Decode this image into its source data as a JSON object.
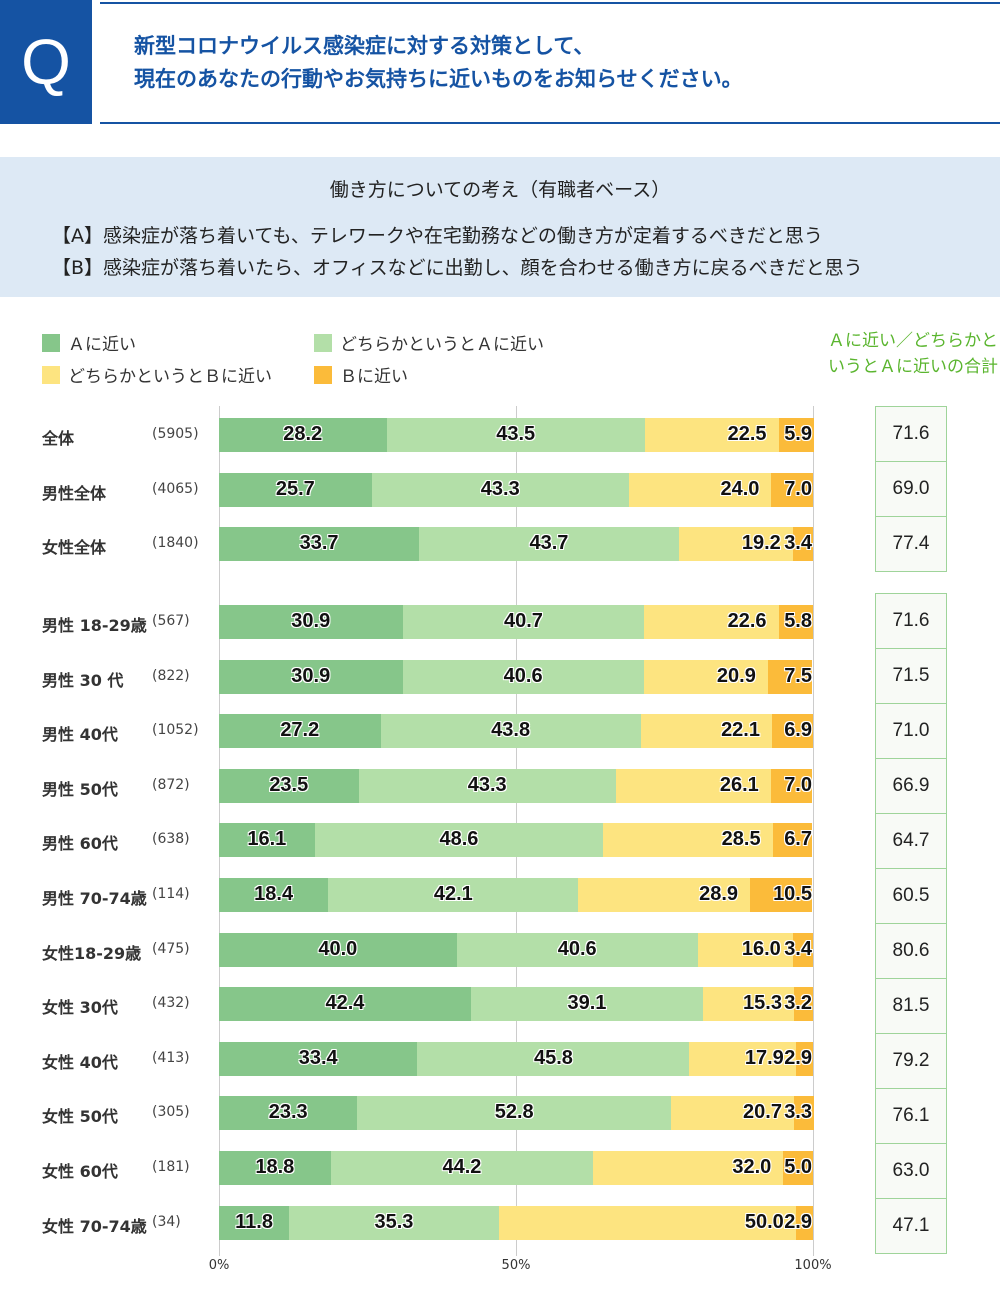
{
  "question": {
    "mark": "Q",
    "lines": [
      "新型コロナウイルス感染症に対する対策として、",
      "現在のあなたの行動やお気持ちに近いものをお知らせください。"
    ]
  },
  "subtitle": "働き方についての考え（有職者ベース）",
  "statement_a": "【A】感染症が落ち着いても、テレワークや在宅勤務などの働き方が定着するべきだと思う",
  "statement_b": "【B】感染症が落ち着いたら、オフィスなどに出勤し、顔を合わせる働き方に戻るべきだと思う",
  "chart_data": {
    "type": "bar",
    "orientation": "horizontal",
    "stacked": true,
    "legend": [
      "Ａに近い",
      "どちらかというとＡに近い",
      "どちらかというとＢに近い",
      "Ｂに近い"
    ],
    "legend_placement": "top-left",
    "colors": [
      "#86c68a",
      "#b3dfa8",
      "#fde480",
      "#fbbb3a"
    ],
    "sum_title": "Ａに近い／どちらかというとＡに近いの合計",
    "xticks": [
      "0%",
      "50%",
      "100%"
    ],
    "xlim": [
      0,
      100
    ],
    "grid": true,
    "groups": [
      {
        "rows": [
          {
            "label": "全体",
            "n": "(5905)",
            "values": [
              28.2,
              43.5,
              22.5,
              5.9
            ],
            "sum": "71.6"
          },
          {
            "label": "男性全体",
            "n": "(4065)",
            "values": [
              25.7,
              43.3,
              24.0,
              7.0
            ],
            "sum": "69.0"
          },
          {
            "label": "女性全体",
            "n": "(1840)",
            "values": [
              33.7,
              43.7,
              19.2,
              3.4
            ],
            "sum": "77.4"
          }
        ]
      },
      {
        "rows": [
          {
            "label": "男性 18-29歳",
            "n": "(567)",
            "values": [
              30.9,
              40.7,
              22.6,
              5.8
            ],
            "sum": "71.6"
          },
          {
            "label": "男性 30 代",
            "n": "(822)",
            "values": [
              30.9,
              40.6,
              20.9,
              7.5
            ],
            "sum": "71.5"
          },
          {
            "label": "男性 40代",
            "n": "(1052)",
            "values": [
              27.2,
              43.8,
              22.1,
              6.9
            ],
            "sum": "71.0"
          },
          {
            "label": "男性 50代",
            "n": "(872)",
            "values": [
              23.5,
              43.3,
              26.1,
              7.0
            ],
            "sum": "66.9"
          },
          {
            "label": "男性 60代",
            "n": "(638)",
            "values": [
              16.1,
              48.6,
              28.5,
              6.7
            ],
            "sum": "64.7"
          },
          {
            "label": "男性 70-74歳",
            "n": "(114)",
            "values": [
              18.4,
              42.1,
              28.9,
              10.5
            ],
            "sum": "60.5"
          },
          {
            "label": "女性18-29歳",
            "n": "(475)",
            "values": [
              40.0,
              40.6,
              16.0,
              3.4
            ],
            "sum": "80.6"
          },
          {
            "label": "女性 30代",
            "n": "(432)",
            "values": [
              42.4,
              39.1,
              15.3,
              3.2
            ],
            "sum": "81.5"
          },
          {
            "label": "女性 40代",
            "n": "(413)",
            "values": [
              33.4,
              45.8,
              17.9,
              2.9
            ],
            "sum": "79.2"
          },
          {
            "label": "女性 50代",
            "n": "(305)",
            "values": [
              23.3,
              52.8,
              20.7,
              3.3
            ],
            "sum": "76.1"
          },
          {
            "label": "女性 60代",
            "n": "(181)",
            "values": [
              18.8,
              44.2,
              32.0,
              5.0
            ],
            "sum": "63.0"
          },
          {
            "label": "女性 70-74歳",
            "n": "(34)",
            "values": [
              11.8,
              35.3,
              50.0,
              2.9
            ],
            "sum": "47.1"
          }
        ]
      }
    ]
  }
}
